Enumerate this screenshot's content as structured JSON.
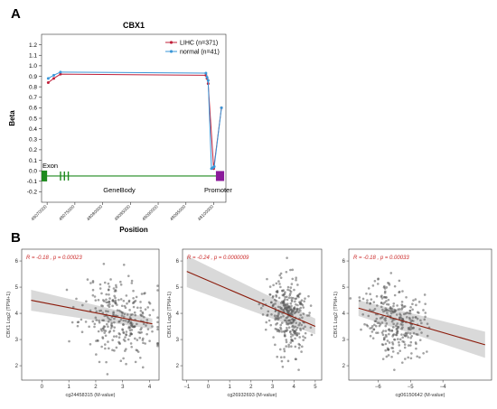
{
  "panels": {
    "a_label": "A",
    "b_label": "B"
  },
  "colors": {
    "liha": "#c0203a",
    "normal": "#3a97d8",
    "exon": "#1e8a1e",
    "promoter": "#8a1a9a",
    "fit": "#8b1a0a",
    "band": "#cccccc",
    "point": "#555555",
    "stat": "#cc2a2a"
  },
  "chart_data": [
    {
      "type": "line",
      "title": "CBX1",
      "xlabel": "Position",
      "ylabel": "Beta",
      "ylim": [
        -0.3,
        1.3
      ],
      "yticks": [
        -0.2,
        -0.1,
        0.0,
        0.1,
        0.2,
        0.3,
        0.4,
        0.5,
        0.6,
        0.7,
        0.8,
        0.9,
        1.0,
        1.1,
        1.2
      ],
      "ytick_labels": [
        "-0.2",
        "-0.1",
        "0.0",
        "0.1",
        "0.2",
        "0.3",
        "0.4",
        "0.5",
        "0.6",
        "0.7",
        "0.8",
        "0.9",
        "1.0",
        "1.1",
        "1.2"
      ],
      "xlim": [
        48069000,
        48102200
      ],
      "xticks": [
        48070000,
        48075000,
        48080000,
        48085000,
        48090000,
        48095000,
        48100000
      ],
      "xtick_labels": [
        "48070000",
        "48075000",
        "48080000",
        "48085000",
        "48090000",
        "48095000",
        "48100000"
      ],
      "legend_position": "top-right",
      "series": [
        {
          "name": "LIHC (n=371)",
          "x": [
            48070200,
            48071200,
            48072400,
            48098600,
            48098800,
            48099000,
            48100000,
            48101400
          ],
          "y": [
            0.84,
            0.88,
            0.92,
            0.91,
            0.88,
            0.83,
            0.02,
            0.6
          ]
        },
        {
          "name": "normal (n=41)",
          "x": [
            48070200,
            48071200,
            48072400,
            48098600,
            48098800,
            48099000,
            48099600,
            48099900,
            48100100,
            48101400
          ],
          "y": [
            0.88,
            0.91,
            0.94,
            0.93,
            0.89,
            0.86,
            0.02,
            0.03,
            0.04,
            0.6
          ]
        }
      ],
      "gene_track": {
        "y": -0.05,
        "exon_label": "Exon",
        "genebody_label": "GeneBody",
        "promoter_label": "Promoter",
        "exons": [
          [
            48069000,
            48070000
          ],
          [
            48072300,
            48072450
          ],
          [
            48073000,
            48073150
          ],
          [
            48073700,
            48073850
          ]
        ],
        "line": [
          48069000,
          48100500
        ],
        "promoter": [
          48100400,
          48101400
        ]
      }
    },
    {
      "type": "scatter",
      "xlabel": "cg24458315 (M-value)",
      "ylabel": "CBX1 Log2 (TPM+1)",
      "stat": "R = -0.18 , p = 0.00023",
      "xlim": [
        -0.75,
        4.35
      ],
      "ylim": [
        1.45,
        6.45
      ],
      "xticks": [
        0,
        1,
        2,
        3,
        4
      ],
      "yticks": [
        2,
        3,
        4,
        5,
        6
      ],
      "fit": {
        "x": [
          -0.4,
          4.1
        ],
        "y": [
          4.5,
          3.6
        ],
        "band_lo_start": 4.1,
        "band_hi_start": 4.9,
        "band_lo_end": 3.4,
        "band_hi_end": 3.8
      },
      "cloud": {
        "cx": 2.9,
        "sx": 0.7,
        "cy": 3.9,
        "sy": 0.75,
        "n": 300,
        "seed": 11
      }
    },
    {
      "type": "scatter",
      "xlabel": "cg26932693 (M-value)",
      "ylabel": "CBX1 Log2 (TPM+1)",
      "stat": "R = -0.24 , p = 0.0000009",
      "xlim": [
        -1.2,
        5.3
      ],
      "ylim": [
        1.45,
        6.45
      ],
      "xticks": [
        -1,
        0,
        1,
        2,
        3,
        4,
        5
      ],
      "yticks": [
        2,
        3,
        4,
        5,
        6
      ],
      "fit": {
        "x": [
          -1.0,
          5.0
        ],
        "y": [
          5.6,
          3.5
        ],
        "band_lo_start": 5.0,
        "band_hi_start": 6.2,
        "band_lo_end": 3.2,
        "band_hi_end": 3.8
      },
      "cloud": {
        "cx": 3.7,
        "sx": 0.45,
        "cy": 3.8,
        "sy": 0.7,
        "n": 320,
        "seed": 23
      }
    },
    {
      "type": "scatter",
      "xlabel": "cg06150642 (M-value)",
      "ylabel": "CBX1 Log2 (TPM+1)",
      "stat": "R = -0.18 , p = 0.00033",
      "xlim": [
        -6.9,
        -2.5
      ],
      "ylim": [
        1.45,
        6.45
      ],
      "xticks": [
        -6,
        -5,
        -4
      ],
      "yticks": [
        2,
        3,
        4,
        5,
        6
      ],
      "fit": {
        "x": [
          -6.6,
          -2.7
        ],
        "y": [
          4.2,
          2.8
        ],
        "band_lo_start": 3.9,
        "band_hi_start": 4.5,
        "band_lo_end": 2.3,
        "band_hi_end": 3.3
      },
      "cloud": {
        "cx": -5.5,
        "sx": 0.45,
        "cy": 3.8,
        "sy": 0.7,
        "n": 300,
        "seed": 37
      }
    }
  ]
}
